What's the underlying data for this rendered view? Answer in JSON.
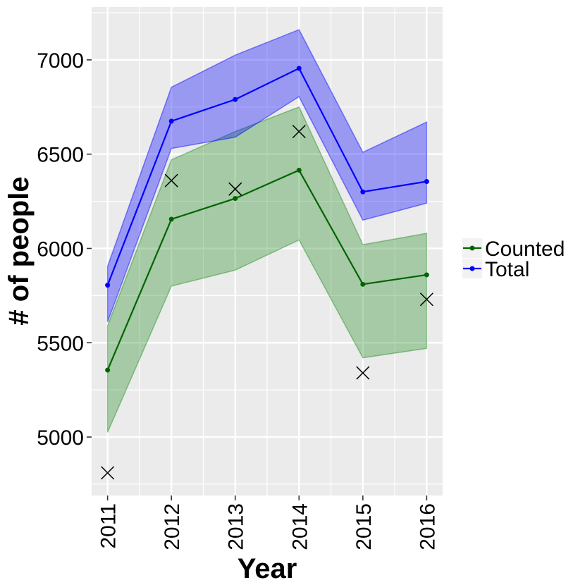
{
  "chart_data": {
    "type": "line",
    "xlabel": "Year",
    "ylabel": "# of people",
    "x": [
      2011,
      2012,
      2013,
      2014,
      2015,
      2016
    ],
    "x_tick_labels": [
      "2011",
      "2012",
      "2013",
      "2014",
      "2015",
      "2016"
    ],
    "y_ticks": [
      5000,
      5500,
      6000,
      6500,
      7000
    ],
    "y_tick_labels": [
      "5000",
      "5500",
      "6000",
      "6500",
      "7000"
    ],
    "xlim": [
      2010.75,
      2016.25
    ],
    "ylim": [
      4690,
      7280
    ],
    "grid": true,
    "legend_position": "right",
    "series": [
      {
        "name": "Counted",
        "color": "#006400",
        "band_color": "#228B22",
        "values": [
          5355,
          6155,
          6265,
          6415,
          5810,
          5860
        ],
        "lower": [
          5025,
          5800,
          5885,
          6045,
          5420,
          5470
        ],
        "upper": [
          5590,
          6470,
          6620,
          6750,
          6020,
          6080
        ]
      },
      {
        "name": "Total",
        "color": "#0000FF",
        "band_color": "#0000FF",
        "values": [
          5805,
          6675,
          6790,
          6955,
          6300,
          6355
        ],
        "lower": [
          5610,
          6530,
          6590,
          6805,
          6150,
          6240
        ],
        "upper": [
          5905,
          6855,
          7025,
          7160,
          6510,
          6670
        ]
      }
    ],
    "observed": {
      "marker": "x",
      "color": "#000000",
      "values": [
        4810,
        6360,
        6315,
        6620,
        5340,
        5730
      ]
    }
  }
}
